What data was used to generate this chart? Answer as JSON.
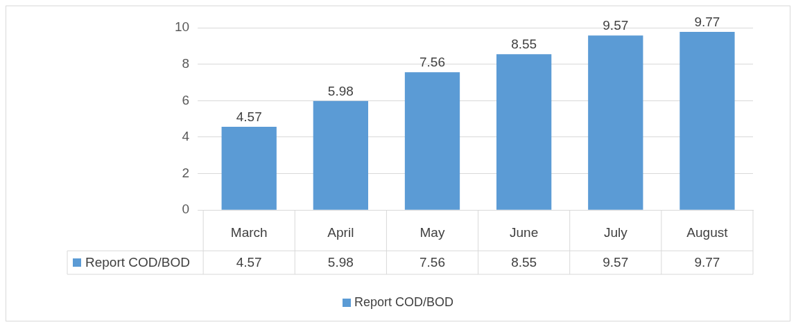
{
  "chart_data": {
    "type": "bar",
    "categories": [
      "March",
      "April",
      "May",
      "June",
      "July",
      "August"
    ],
    "series": [
      {
        "name": "Report COD/BOD",
        "color": "#5b9bd5",
        "values": [
          4.57,
          5.98,
          7.56,
          8.55,
          9.57,
          9.77
        ],
        "value_labels": [
          "4.57",
          "5.98",
          "7.56",
          "8.55",
          "9.57",
          "9.77"
        ]
      }
    ],
    "ylim": [
      0,
      10
    ],
    "yticks": [
      0,
      2,
      4,
      6,
      8,
      10
    ],
    "grid": "y",
    "data_labels": true,
    "legend": "bottom",
    "annotations": [
      "4.57",
      "5.98",
      "7.56",
      "8.55",
      "9.57",
      "9.77"
    ]
  }
}
